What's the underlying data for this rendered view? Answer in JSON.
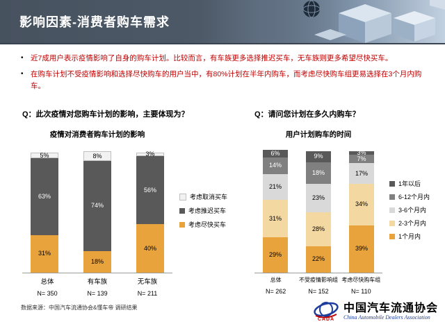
{
  "slide": {
    "title": "影响因素-消费者购车需求",
    "bullets": [
      "近7成用户表示疫情影响了自身的购车计划。比较而言，有车族更多选择推迟买车，无车族则更多希望尽快买车。",
      "在购车计划不受疫情影响和选择尽快购车的用户当中，有80%计划在半年内购车，而考虑尽快购车组更易选择在3个月内购车。"
    ],
    "source": "数据来源：中国汽车流通协会&懂车帝 调研结果",
    "footer_logo": {
      "org_cn": "中国汽车流通协会",
      "org_en": "China Automobile Dealers Association",
      "abbr": "CADA"
    },
    "theme": {
      "banner_color": "#47525F",
      "title_color": "#FFFFFF",
      "bullet_color": "#C00000",
      "accent_orange": "#E8A33C",
      "dark_gray": "#595959"
    }
  },
  "chart_data": [
    {
      "type": "bar",
      "stacked": true,
      "stack_order": "bottom-to-top",
      "legend_position": "right",
      "question": "Q：此次疫情对您购车计划的影响，主要体现为？",
      "title": "疫情对消费者购车计划的影响",
      "categories": [
        "总体",
        "有车族",
        "无车族"
      ],
      "n_labels": [
        "N= 350",
        "N= 139",
        "N= 211"
      ],
      "ylim": [
        0,
        100
      ],
      "series": [
        {
          "name": "考虑尽快买车",
          "color": "#E8A33C",
          "label_color": "#000000",
          "values": [
            31,
            18,
            40
          ]
        },
        {
          "name": "考虑推迟买车",
          "color": "#595959",
          "label_color": "#FFFFFF",
          "values": [
            63,
            74,
            56
          ]
        },
        {
          "name": "考虑取消买车",
          "color": "#F2F2F2",
          "label_color": "#000000",
          "edge": "#BFBFBF",
          "values": [
            5,
            8,
            3
          ]
        }
      ]
    },
    {
      "type": "bar",
      "stacked": true,
      "stack_order": "bottom-to-top",
      "legend_position": "right",
      "question": "Q：请问您计划在多久内购车？",
      "title": "用户计划购车的时间",
      "categories": [
        "总体",
        "不受疫情影响组",
        "考虑尽快购车组"
      ],
      "n_labels": [
        "N= 262",
        "N= 152",
        "N= 110"
      ],
      "ylim": [
        0,
        100
      ],
      "series": [
        {
          "name": "1个月内",
          "color": "#E8A33C",
          "label_color": "#000000",
          "values": [
            29,
            22,
            39
          ]
        },
        {
          "name": "2-3个月内",
          "color": "#F4D8A2",
          "label_color": "#000000",
          "values": [
            31,
            28,
            34
          ]
        },
        {
          "name": "3-6个月内",
          "color": "#D9D9D9",
          "label_color": "#000000",
          "values": [
            21,
            23,
            17
          ]
        },
        {
          "name": "6-12个月内",
          "color": "#808080",
          "label_color": "#FFFFFF",
          "values": [
            14,
            18,
            7
          ]
        },
        {
          "name": "1年以后",
          "color": "#595959",
          "label_color": "#FFFFFF",
          "values": [
            6,
            9,
            3
          ]
        }
      ]
    }
  ]
}
